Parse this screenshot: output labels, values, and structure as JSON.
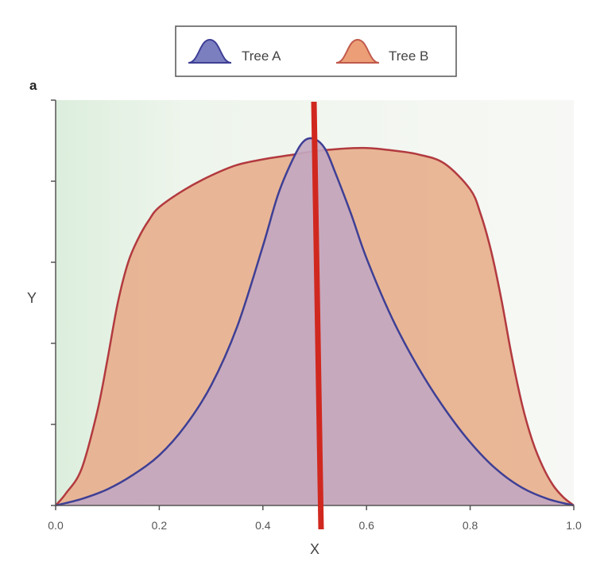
{
  "chart_data": {
    "type": "area",
    "panel_label": "a",
    "xlabel": "X",
    "ylabel": "Y",
    "xlim": [
      0.0,
      1.0
    ],
    "ylim": [
      0,
      5
    ],
    "x_ticks": [
      "0.0",
      "0.2",
      "0.4",
      "0.6",
      "0.8",
      "1.0"
    ],
    "y_ticks_count": 5,
    "legend_position": "top-center",
    "series": [
      {
        "name": "Tree B",
        "fill": "#e7b08e",
        "stroke": "#b23a3f",
        "x": [
          0.0,
          0.02,
          0.05,
          0.08,
          0.1,
          0.12,
          0.14,
          0.16,
          0.18,
          0.2,
          0.25,
          0.3,
          0.35,
          0.4,
          0.45,
          0.5,
          0.55,
          0.6,
          0.65,
          0.7,
          0.75,
          0.8,
          0.82,
          0.84,
          0.86,
          0.88,
          0.9,
          0.92,
          0.94,
          0.96,
          0.98,
          1.0
        ],
        "y": [
          0.0,
          0.15,
          0.45,
          1.15,
          1.8,
          2.5,
          3.0,
          3.3,
          3.52,
          3.68,
          3.9,
          4.07,
          4.2,
          4.27,
          4.32,
          4.37,
          4.4,
          4.41,
          4.38,
          4.33,
          4.22,
          3.9,
          3.6,
          3.15,
          2.55,
          1.85,
          1.25,
          0.8,
          0.48,
          0.25,
          0.1,
          0.0
        ]
      },
      {
        "name": "Tree A",
        "fill": "#c3a8c0",
        "stroke": "#3e3f95",
        "x": [
          0.0,
          0.05,
          0.1,
          0.15,
          0.2,
          0.25,
          0.3,
          0.35,
          0.4,
          0.43,
          0.46,
          0.48,
          0.5,
          0.52,
          0.54,
          0.57,
          0.6,
          0.65,
          0.7,
          0.75,
          0.8,
          0.85,
          0.9,
          0.95,
          1.0
        ],
        "y": [
          0.0,
          0.08,
          0.2,
          0.38,
          0.62,
          0.98,
          1.48,
          2.2,
          3.2,
          3.85,
          4.3,
          4.5,
          4.52,
          4.4,
          4.1,
          3.6,
          3.05,
          2.3,
          1.7,
          1.2,
          0.78,
          0.45,
          0.22,
          0.08,
          0.0
        ]
      }
    ],
    "annotation": {
      "type": "vertical-line",
      "x": 0.5,
      "color": "#d0281f"
    }
  }
}
